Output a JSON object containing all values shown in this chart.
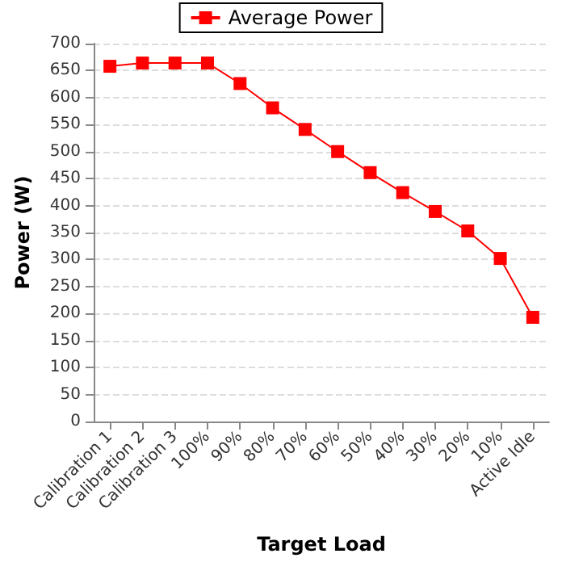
{
  "chart_data": {
    "type": "line",
    "xlabel": "Target Load",
    "ylabel": "Power (W)",
    "categories": [
      "Calibration 1",
      "Calibration 2",
      "Calibration 3",
      "100%",
      "90%",
      "80%",
      "70%",
      "60%",
      "50%",
      "40%",
      "30%",
      "20%",
      "10%",
      "Active Idle"
    ],
    "series": [
      {
        "name": "Average Power",
        "color": "#ff0000",
        "values": [
          658,
          664,
          664,
          664,
          626,
          581,
          541,
          500,
          461,
          424,
          389,
          353,
          302,
          193
        ]
      }
    ],
    "ylim": [
      0,
      700
    ],
    "yticks": [
      0,
      50,
      100,
      150,
      200,
      250,
      300,
      350,
      400,
      450,
      500,
      550,
      600,
      650,
      700
    ],
    "grid": "y",
    "legend": "top",
    "marker": "square",
    "line_style": "solid"
  }
}
